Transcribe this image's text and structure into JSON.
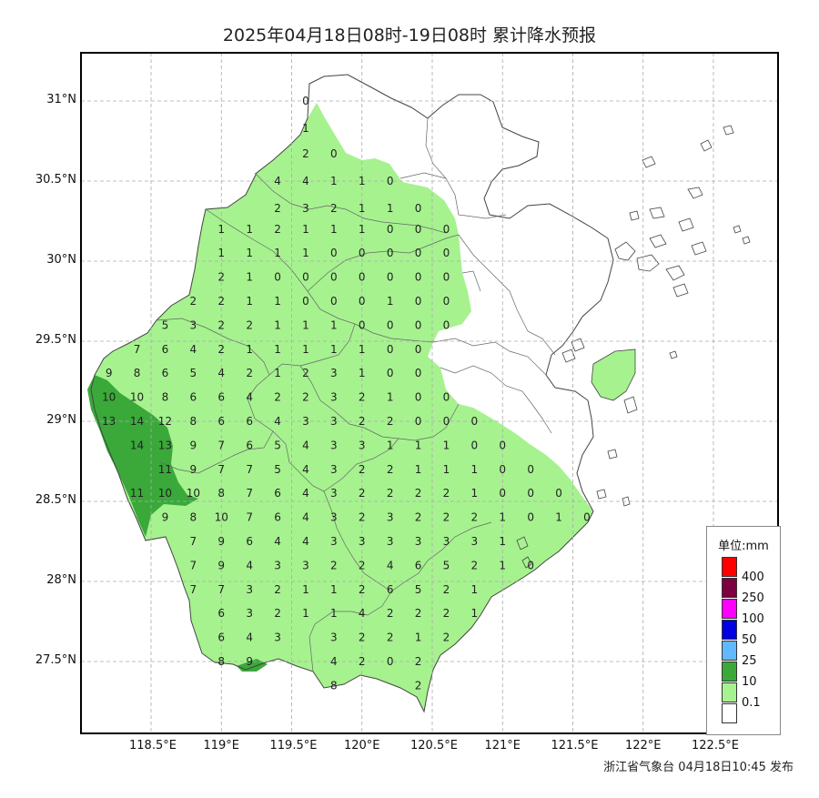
{
  "title": "2025年04月18日08时-19日08时 累计降水预报",
  "footer": "浙江省气象台 04月18日10:45 发布",
  "lat_labels": [
    "31°N",
    "30.5°N",
    "30°N",
    "29.5°N",
    "29°N",
    "28.5°N",
    "28°N",
    "27.5°N"
  ],
  "lon_labels": [
    "118.5°E",
    "119°E",
    "119.5°E",
    "120°E",
    "120.5°E",
    "121°E",
    "121.5°E",
    "122°E",
    "122.5°E"
  ],
  "legend": {
    "title": "单位:mm",
    "items": [
      {
        "label": "400",
        "color": "#ff0000"
      },
      {
        "label": "250",
        "color": "#7d0040"
      },
      {
        "label": "100",
        "color": "#ff00ff"
      },
      {
        "label": "50",
        "color": "#0000e0"
      },
      {
        "label": "25",
        "color": "#60b8ff"
      },
      {
        "label": "10",
        "color": "#3aa93a"
      },
      {
        "label": "0.1",
        "color": "#a6f28f"
      },
      {
        "label": "",
        "color": "#ffffff"
      }
    ]
  },
  "colors": {
    "light_rain": "#a6f28f",
    "moderate_rain": "#3aa93a",
    "grid": "#aaaaaa",
    "boundary": "#444444"
  },
  "point_values": [
    [
      119.6,
      31.0,
      "0"
    ],
    [
      119.6,
      30.83,
      "1"
    ],
    [
      119.6,
      30.67,
      "2"
    ],
    [
      119.8,
      30.67,
      "0"
    ],
    [
      119.4,
      30.5,
      "4"
    ],
    [
      119.6,
      30.5,
      "4"
    ],
    [
      119.8,
      30.5,
      "1"
    ],
    [
      120.0,
      30.5,
      "1"
    ],
    [
      120.2,
      30.5,
      "0"
    ],
    [
      119.4,
      30.33,
      "2"
    ],
    [
      119.6,
      30.33,
      "3"
    ],
    [
      119.8,
      30.33,
      "2"
    ],
    [
      120.0,
      30.33,
      "1"
    ],
    [
      120.2,
      30.33,
      "1"
    ],
    [
      120.4,
      30.33,
      "0"
    ],
    [
      119.0,
      30.2,
      "1"
    ],
    [
      119.2,
      30.2,
      "1"
    ],
    [
      119.4,
      30.2,
      "2"
    ],
    [
      119.6,
      30.2,
      "1"
    ],
    [
      119.8,
      30.2,
      "1"
    ],
    [
      120.0,
      30.2,
      "1"
    ],
    [
      120.2,
      30.2,
      "0"
    ],
    [
      120.4,
      30.2,
      "0"
    ],
    [
      120.6,
      30.2,
      "0"
    ],
    [
      119.0,
      30.05,
      "1"
    ],
    [
      119.2,
      30.05,
      "1"
    ],
    [
      119.4,
      30.05,
      "1"
    ],
    [
      119.6,
      30.05,
      "1"
    ],
    [
      119.8,
      30.05,
      "0"
    ],
    [
      120.0,
      30.05,
      "0"
    ],
    [
      120.2,
      30.05,
      "0"
    ],
    [
      120.4,
      30.05,
      "0"
    ],
    [
      120.6,
      30.05,
      "0"
    ],
    [
      119.0,
      29.9,
      "2"
    ],
    [
      119.2,
      29.9,
      "1"
    ],
    [
      119.4,
      29.9,
      "0"
    ],
    [
      119.6,
      29.9,
      "0"
    ],
    [
      119.8,
      29.9,
      "0"
    ],
    [
      120.0,
      29.9,
      "0"
    ],
    [
      120.2,
      29.9,
      "0"
    ],
    [
      120.4,
      29.9,
      "0"
    ],
    [
      120.6,
      29.9,
      "0"
    ],
    [
      118.8,
      29.75,
      "2"
    ],
    [
      119.0,
      29.75,
      "2"
    ],
    [
      119.2,
      29.75,
      "1"
    ],
    [
      119.4,
      29.75,
      "1"
    ],
    [
      119.6,
      29.75,
      "0"
    ],
    [
      119.8,
      29.75,
      "0"
    ],
    [
      120.0,
      29.75,
      "0"
    ],
    [
      120.2,
      29.75,
      "1"
    ],
    [
      120.4,
      29.75,
      "0"
    ],
    [
      120.6,
      29.75,
      "0"
    ],
    [
      118.6,
      29.6,
      "5"
    ],
    [
      118.8,
      29.6,
      "3"
    ],
    [
      119.0,
      29.6,
      "2"
    ],
    [
      119.2,
      29.6,
      "2"
    ],
    [
      119.4,
      29.6,
      "1"
    ],
    [
      119.6,
      29.6,
      "1"
    ],
    [
      119.8,
      29.6,
      "1"
    ],
    [
      120.0,
      29.6,
      "0"
    ],
    [
      120.2,
      29.6,
      "0"
    ],
    [
      120.4,
      29.6,
      "0"
    ],
    [
      120.6,
      29.6,
      "0"
    ],
    [
      118.4,
      29.45,
      "7"
    ],
    [
      118.6,
      29.45,
      "6"
    ],
    [
      118.8,
      29.45,
      "4"
    ],
    [
      119.0,
      29.45,
      "2"
    ],
    [
      119.2,
      29.45,
      "1"
    ],
    [
      119.4,
      29.45,
      "1"
    ],
    [
      119.6,
      29.45,
      "1"
    ],
    [
      119.8,
      29.45,
      "1"
    ],
    [
      120.0,
      29.45,
      "1"
    ],
    [
      120.2,
      29.45,
      "0"
    ],
    [
      120.4,
      29.45,
      "0"
    ],
    [
      118.2,
      29.3,
      "9"
    ],
    [
      118.4,
      29.3,
      "8"
    ],
    [
      118.6,
      29.3,
      "6"
    ],
    [
      118.8,
      29.3,
      "5"
    ],
    [
      119.0,
      29.3,
      "4"
    ],
    [
      119.2,
      29.3,
      "2"
    ],
    [
      119.4,
      29.3,
      "1"
    ],
    [
      119.6,
      29.3,
      "2"
    ],
    [
      119.8,
      29.3,
      "3"
    ],
    [
      120.0,
      29.3,
      "1"
    ],
    [
      120.2,
      29.3,
      "0"
    ],
    [
      120.4,
      29.3,
      "0"
    ],
    [
      118.2,
      29.15,
      "10"
    ],
    [
      118.4,
      29.15,
      "10"
    ],
    [
      118.6,
      29.15,
      "8"
    ],
    [
      118.8,
      29.15,
      "6"
    ],
    [
      119.0,
      29.15,
      "6"
    ],
    [
      119.2,
      29.15,
      "4"
    ],
    [
      119.4,
      29.15,
      "2"
    ],
    [
      119.6,
      29.15,
      "2"
    ],
    [
      119.8,
      29.15,
      "3"
    ],
    [
      120.0,
      29.15,
      "2"
    ],
    [
      120.2,
      29.15,
      "1"
    ],
    [
      120.4,
      29.15,
      "0"
    ],
    [
      120.6,
      29.15,
      "0"
    ],
    [
      118.2,
      29.0,
      "13"
    ],
    [
      118.4,
      29.0,
      "14"
    ],
    [
      118.6,
      29.0,
      "12"
    ],
    [
      118.8,
      29.0,
      "8"
    ],
    [
      119.0,
      29.0,
      "6"
    ],
    [
      119.2,
      29.0,
      "6"
    ],
    [
      119.4,
      29.0,
      "4"
    ],
    [
      119.6,
      29.0,
      "3"
    ],
    [
      119.8,
      29.0,
      "3"
    ],
    [
      120.0,
      29.0,
      "2"
    ],
    [
      120.2,
      29.0,
      "2"
    ],
    [
      120.4,
      29.0,
      "0"
    ],
    [
      120.6,
      29.0,
      "0"
    ],
    [
      120.8,
      29.0,
      "0"
    ],
    [
      118.4,
      28.85,
      "14"
    ],
    [
      118.6,
      28.85,
      "13"
    ],
    [
      118.8,
      28.85,
      "9"
    ],
    [
      119.0,
      28.85,
      "7"
    ],
    [
      119.2,
      28.85,
      "6"
    ],
    [
      119.4,
      28.85,
      "5"
    ],
    [
      119.6,
      28.85,
      "4"
    ],
    [
      119.8,
      28.85,
      "3"
    ],
    [
      120.0,
      28.85,
      "3"
    ],
    [
      120.2,
      28.85,
      "1"
    ],
    [
      120.4,
      28.85,
      "1"
    ],
    [
      120.6,
      28.85,
      "1"
    ],
    [
      120.8,
      28.85,
      "0"
    ],
    [
      121.0,
      28.85,
      "0"
    ],
    [
      118.6,
      28.7,
      "11"
    ],
    [
      118.8,
      28.7,
      "9"
    ],
    [
      119.0,
      28.7,
      "7"
    ],
    [
      119.2,
      28.7,
      "7"
    ],
    [
      119.4,
      28.7,
      "5"
    ],
    [
      119.6,
      28.7,
      "4"
    ],
    [
      119.8,
      28.7,
      "3"
    ],
    [
      120.0,
      28.7,
      "2"
    ],
    [
      120.2,
      28.7,
      "2"
    ],
    [
      120.4,
      28.7,
      "1"
    ],
    [
      120.6,
      28.7,
      "1"
    ],
    [
      120.8,
      28.7,
      "1"
    ],
    [
      121.0,
      28.7,
      "0"
    ],
    [
      121.2,
      28.7,
      "0"
    ],
    [
      118.4,
      28.55,
      "11"
    ],
    [
      118.6,
      28.55,
      "10"
    ],
    [
      118.8,
      28.55,
      "10"
    ],
    [
      119.0,
      28.55,
      "8"
    ],
    [
      119.2,
      28.55,
      "7"
    ],
    [
      119.4,
      28.55,
      "6"
    ],
    [
      119.6,
      28.55,
      "4"
    ],
    [
      119.8,
      28.55,
      "3"
    ],
    [
      120.0,
      28.55,
      "2"
    ],
    [
      120.2,
      28.55,
      "2"
    ],
    [
      120.4,
      28.55,
      "2"
    ],
    [
      120.6,
      28.55,
      "2"
    ],
    [
      120.8,
      28.55,
      "1"
    ],
    [
      121.0,
      28.55,
      "0"
    ],
    [
      121.2,
      28.55,
      "0"
    ],
    [
      121.4,
      28.55,
      "0"
    ],
    [
      118.6,
      28.4,
      "9"
    ],
    [
      118.8,
      28.4,
      "8"
    ],
    [
      119.0,
      28.4,
      "10"
    ],
    [
      119.2,
      28.4,
      "7"
    ],
    [
      119.4,
      28.4,
      "6"
    ],
    [
      119.6,
      28.4,
      "4"
    ],
    [
      119.8,
      28.4,
      "3"
    ],
    [
      120.0,
      28.4,
      "2"
    ],
    [
      120.2,
      28.4,
      "3"
    ],
    [
      120.4,
      28.4,
      "2"
    ],
    [
      120.6,
      28.4,
      "2"
    ],
    [
      120.8,
      28.4,
      "2"
    ],
    [
      121.0,
      28.4,
      "1"
    ],
    [
      121.2,
      28.4,
      "0"
    ],
    [
      121.4,
      28.4,
      "1"
    ],
    [
      121.6,
      28.4,
      "0"
    ],
    [
      118.8,
      28.25,
      "7"
    ],
    [
      119.0,
      28.25,
      "9"
    ],
    [
      119.2,
      28.25,
      "6"
    ],
    [
      119.4,
      28.25,
      "4"
    ],
    [
      119.6,
      28.25,
      "4"
    ],
    [
      119.8,
      28.25,
      "3"
    ],
    [
      120.0,
      28.25,
      "3"
    ],
    [
      120.2,
      28.25,
      "3"
    ],
    [
      120.4,
      28.25,
      "3"
    ],
    [
      120.6,
      28.25,
      "3"
    ],
    [
      120.8,
      28.25,
      "3"
    ],
    [
      121.0,
      28.25,
      "1"
    ],
    [
      118.8,
      28.1,
      "7"
    ],
    [
      119.0,
      28.1,
      "9"
    ],
    [
      119.2,
      28.1,
      "4"
    ],
    [
      119.4,
      28.1,
      "3"
    ],
    [
      119.6,
      28.1,
      "3"
    ],
    [
      119.8,
      28.1,
      "2"
    ],
    [
      120.0,
      28.1,
      "2"
    ],
    [
      120.2,
      28.1,
      "4"
    ],
    [
      120.4,
      28.1,
      "6"
    ],
    [
      120.6,
      28.1,
      "5"
    ],
    [
      120.8,
      28.1,
      "2"
    ],
    [
      121.0,
      28.1,
      "1"
    ],
    [
      121.2,
      28.1,
      "0"
    ],
    [
      118.8,
      27.95,
      "7"
    ],
    [
      119.0,
      27.95,
      "7"
    ],
    [
      119.2,
      27.95,
      "3"
    ],
    [
      119.4,
      27.95,
      "2"
    ],
    [
      119.6,
      27.95,
      "1"
    ],
    [
      119.8,
      27.95,
      "1"
    ],
    [
      120.0,
      27.95,
      "2"
    ],
    [
      120.2,
      27.95,
      "6"
    ],
    [
      120.4,
      27.95,
      "5"
    ],
    [
      120.6,
      27.95,
      "2"
    ],
    [
      120.8,
      27.95,
      "1"
    ],
    [
      119.0,
      27.8,
      "6"
    ],
    [
      119.2,
      27.8,
      "3"
    ],
    [
      119.4,
      27.8,
      "2"
    ],
    [
      119.6,
      27.8,
      "1"
    ],
    [
      119.8,
      27.8,
      "1"
    ],
    [
      120.0,
      27.8,
      "4"
    ],
    [
      120.2,
      27.8,
      "2"
    ],
    [
      120.4,
      27.8,
      "2"
    ],
    [
      120.6,
      27.8,
      "2"
    ],
    [
      120.8,
      27.8,
      "1"
    ],
    [
      119.0,
      27.65,
      "6"
    ],
    [
      119.2,
      27.65,
      "4"
    ],
    [
      119.4,
      27.65,
      "3"
    ],
    [
      119.8,
      27.65,
      "3"
    ],
    [
      120.0,
      27.65,
      "2"
    ],
    [
      120.2,
      27.65,
      "2"
    ],
    [
      120.4,
      27.65,
      "1"
    ],
    [
      120.6,
      27.65,
      "2"
    ],
    [
      119.0,
      27.5,
      "8"
    ],
    [
      119.2,
      27.5,
      "9"
    ],
    [
      119.8,
      27.5,
      "4"
    ],
    [
      120.0,
      27.5,
      "2"
    ],
    [
      120.2,
      27.5,
      "0"
    ],
    [
      120.4,
      27.5,
      "2"
    ],
    [
      119.8,
      27.35,
      "8"
    ],
    [
      120.4,
      27.35,
      "2"
    ]
  ]
}
